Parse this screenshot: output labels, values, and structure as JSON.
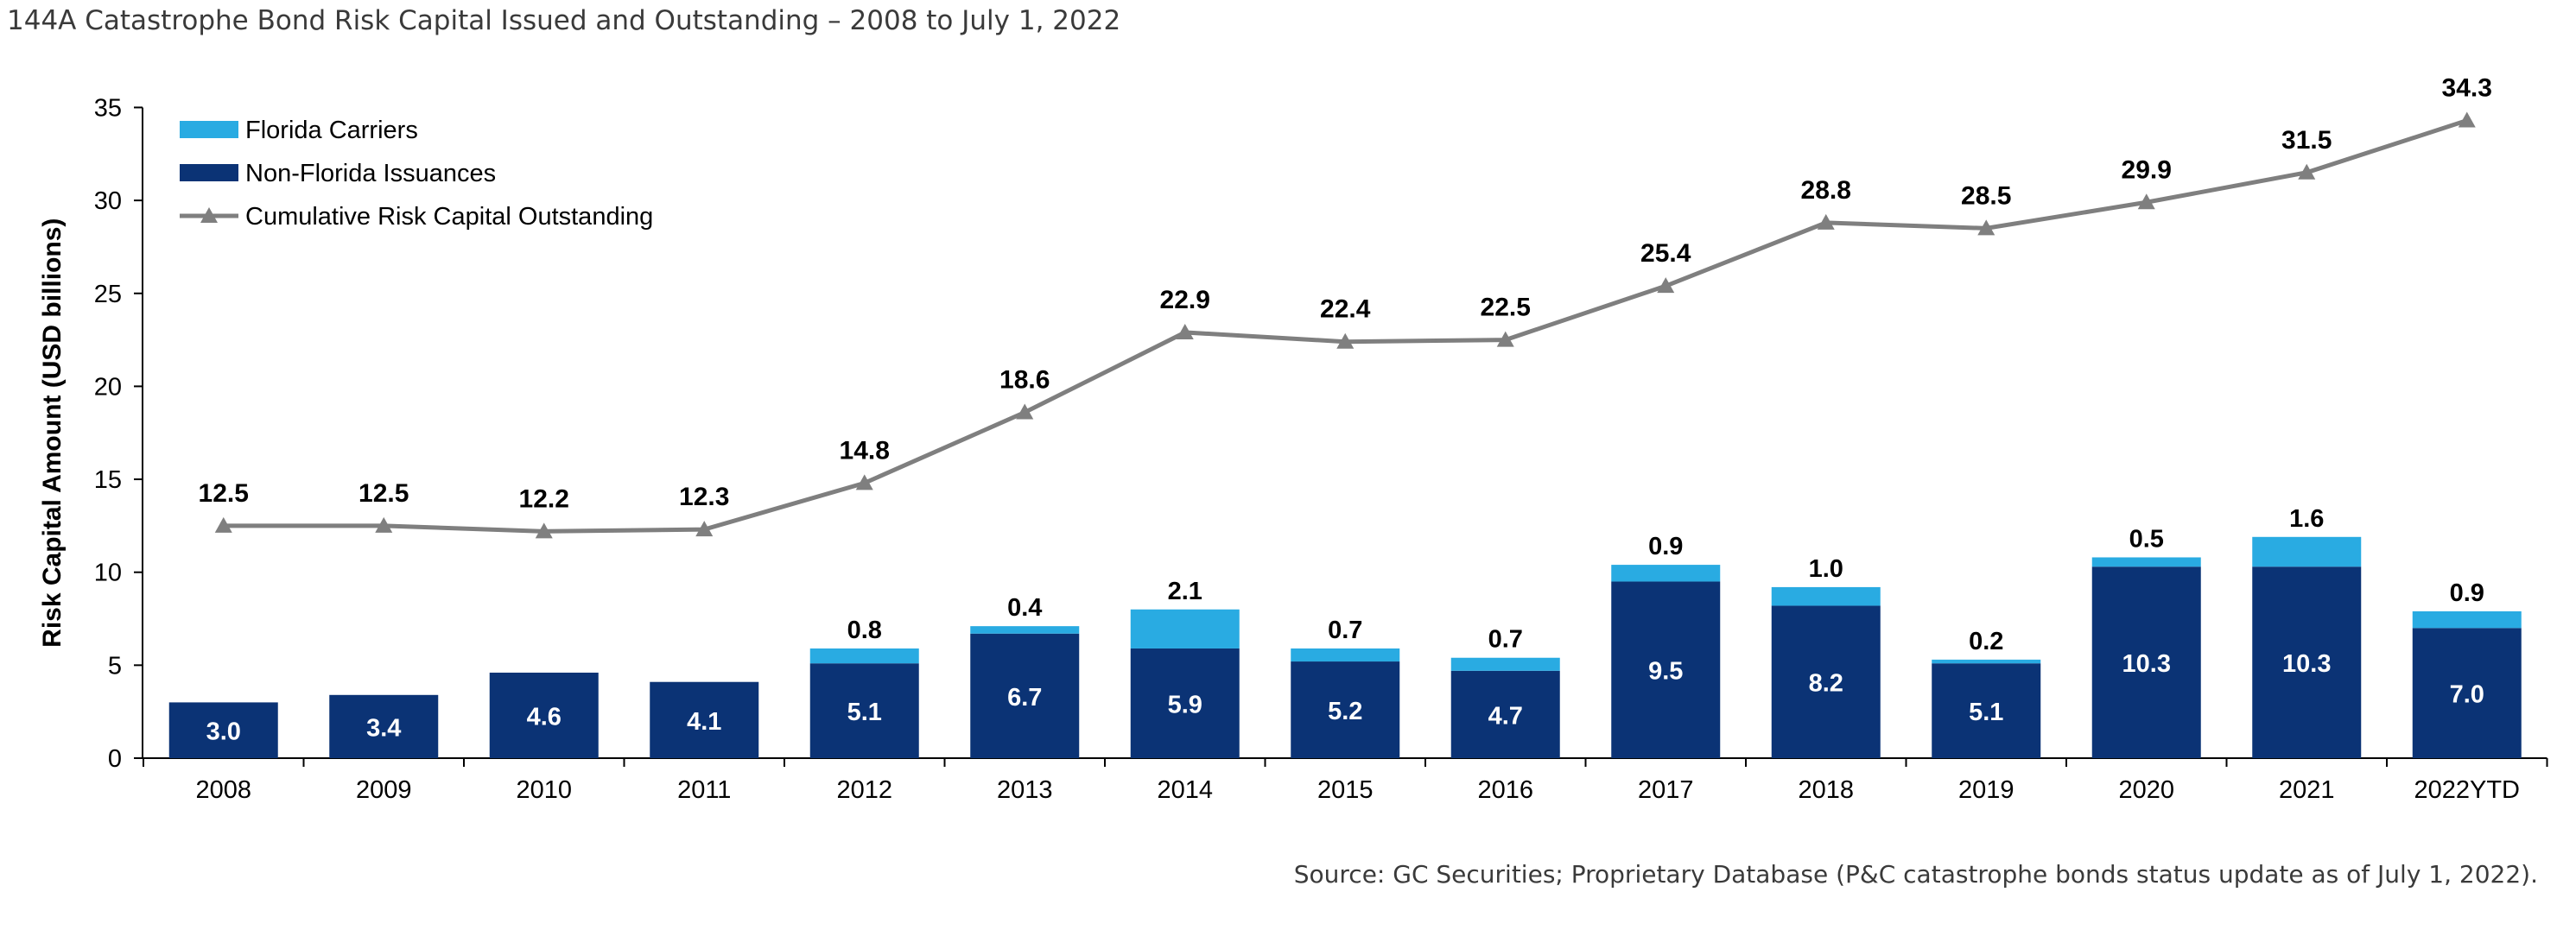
{
  "title": "144A Catastrophe Bond Risk Capital Issued and Outstanding – 2008 to July 1, 2022",
  "source": "Source: GC Securities; Proprietary Database (P&C catastrophe bonds status update as of July 1, 2022).",
  "colors": {
    "florida": "#29abe2",
    "non_florida": "#0b3375",
    "cumulative": "#7f7f7f"
  },
  "chart_data": {
    "type": "bar",
    "stacked": true,
    "title": "144A Catastrophe Bond Risk Capital Issued and Outstanding – 2008 to July 1, 2022",
    "ylabel": "Risk Capital Amount (USD billions)",
    "xlabel": "",
    "ylim": [
      0,
      35
    ],
    "yticks": [
      0,
      5,
      10,
      15,
      20,
      25,
      30,
      35
    ],
    "grid": false,
    "legend_position": "top-left",
    "categories": [
      "2008",
      "2009",
      "2010",
      "2011",
      "2012",
      "2013",
      "2014",
      "2015",
      "2016",
      "2017",
      "2018",
      "2019",
      "2020",
      "2021",
      "2022YTD"
    ],
    "series": [
      {
        "name": "Non-Florida Issuances",
        "kind": "bar",
        "values": [
          3.0,
          3.4,
          4.6,
          4.1,
          5.1,
          6.7,
          5.9,
          5.2,
          4.7,
          9.5,
          8.2,
          5.1,
          10.3,
          10.3,
          7.0
        ],
        "labels": [
          "3.0",
          "3.4",
          "4.6",
          "4.1",
          "5.1",
          "6.7",
          "5.9",
          "5.2",
          "4.7",
          "9.5",
          "8.2",
          "5.1",
          "10.3",
          "10.3",
          "7.0"
        ]
      },
      {
        "name": "Florida Carriers",
        "kind": "bar",
        "values": [
          0,
          0,
          0,
          0,
          0.8,
          0.4,
          2.1,
          0.7,
          0.7,
          0.9,
          1.0,
          0.2,
          0.5,
          1.6,
          0.9
        ],
        "labels": [
          "",
          "",
          "",
          "",
          "0.8",
          "0.4",
          "2.1",
          "0.7",
          "0.7",
          "0.9",
          "1.0",
          "0.2",
          "0.5",
          "1.6",
          "0.9"
        ]
      },
      {
        "name": "Cumulative Risk Capital Outstanding",
        "kind": "line",
        "marker": "triangle",
        "values": [
          12.5,
          12.5,
          12.2,
          12.3,
          14.8,
          18.6,
          22.9,
          22.4,
          22.5,
          25.4,
          28.8,
          28.5,
          29.9,
          31.5,
          34.3
        ],
        "labels": [
          "12.5",
          "12.5",
          "12.2",
          "12.3",
          "14.8",
          "18.6",
          "22.9",
          "22.4",
          "22.5",
          "25.4",
          "28.8",
          "28.5",
          "29.9",
          "31.5",
          "34.3"
        ]
      }
    ]
  }
}
